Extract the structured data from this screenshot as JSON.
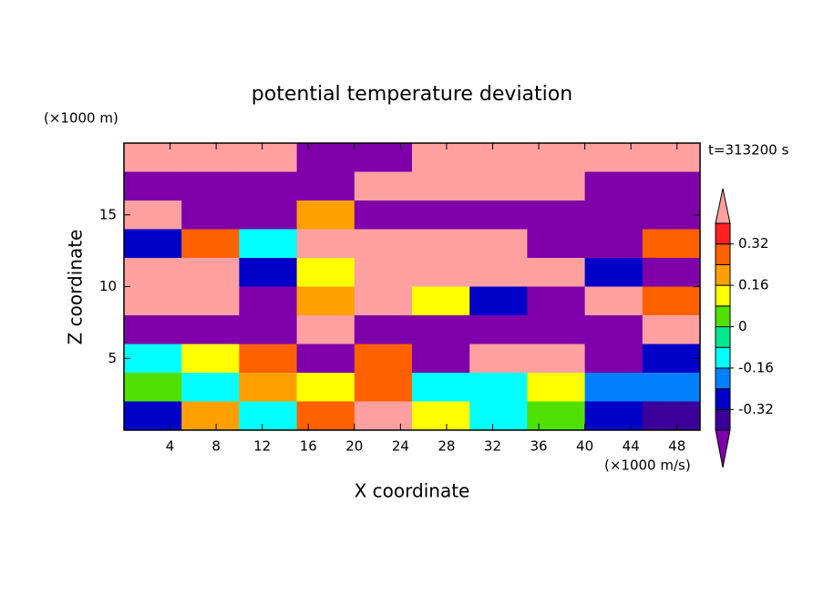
{
  "chart_data": {
    "type": "contour",
    "title": "potential temperature deviation",
    "subtitle": "t=313200 s",
    "x_label": "X coordinate",
    "y_label": "Z coordinate",
    "x_unit": "(×1000 m/s)",
    "y_unit": "(×1000 m)",
    "xlim": [
      0,
      50
    ],
    "ylim": [
      0,
      20
    ],
    "xticks": [
      4,
      8,
      12,
      16,
      20,
      24,
      28,
      32,
      36,
      40,
      44,
      48
    ],
    "yticks": [
      5,
      10,
      15
    ],
    "x": [
      2.5,
      7.5,
      12.5,
      17.5,
      22.5,
      27.5,
      32.5,
      37.5,
      42.5,
      47.5
    ],
    "y": [
      19,
      17,
      15,
      13,
      11,
      9,
      7,
      5,
      3,
      1
    ],
    "z": [
      [
        0.5,
        0.5,
        0.5,
        -0.5,
        -0.5,
        0.5,
        0.5,
        0.5,
        0.5,
        0.5
      ],
      [
        -0.5,
        -0.5,
        -0.5,
        -0.5,
        0.5,
        0.5,
        0.5,
        0.5,
        -0.5,
        -0.5
      ],
      [
        0.5,
        -0.5,
        -0.5,
        0.2,
        -0.5,
        -0.5,
        -0.5,
        -0.5,
        -0.5,
        -0.5
      ],
      [
        -0.3,
        0.3,
        -0.1,
        0.5,
        0.5,
        0.5,
        0.5,
        -0.5,
        -0.5,
        0.3
      ],
      [
        0.5,
        0.5,
        -0.3,
        0.1,
        0.5,
        0.5,
        0.5,
        0.5,
        -0.3,
        -0.5
      ],
      [
        0.5,
        0.5,
        -0.5,
        0.2,
        0.5,
        0.1,
        -0.3,
        -0.5,
        0.5,
        0.3
      ],
      [
        -0.5,
        -0.5,
        -0.5,
        0.5,
        -0.5,
        -0.5,
        -0.5,
        -0.5,
        -0.5,
        0.5
      ],
      [
        -0.1,
        0.1,
        0.3,
        -0.5,
        0.3,
        -0.5,
        0.5,
        0.5,
        -0.5,
        -0.3
      ],
      [
        0.05,
        -0.1,
        0.2,
        0.1,
        0.3,
        -0.1,
        -0.1,
        0.1,
        -0.2,
        -0.2
      ],
      [
        -0.3,
        0.2,
        -0.1,
        0.3,
        0.4,
        0.1,
        -0.1,
        0.0,
        -0.3,
        -0.35
      ]
    ],
    "levels": [
      -0.4,
      -0.32,
      -0.24,
      -0.16,
      -0.08,
      0,
      0.08,
      0.16,
      0.24,
      0.32,
      0.4
    ],
    "colors": [
      "#7f00aa",
      "#3a0099",
      "#0000c8",
      "#0080ff",
      "#00ffff",
      "#00e890",
      "#50e000",
      "#ffff00",
      "#ffa000",
      "#ff6000",
      "#ff2020",
      "#ffa0a0"
    ],
    "colorbar_ticks": [
      0.32,
      0.16,
      0,
      -0.16,
      -0.32
    ]
  }
}
